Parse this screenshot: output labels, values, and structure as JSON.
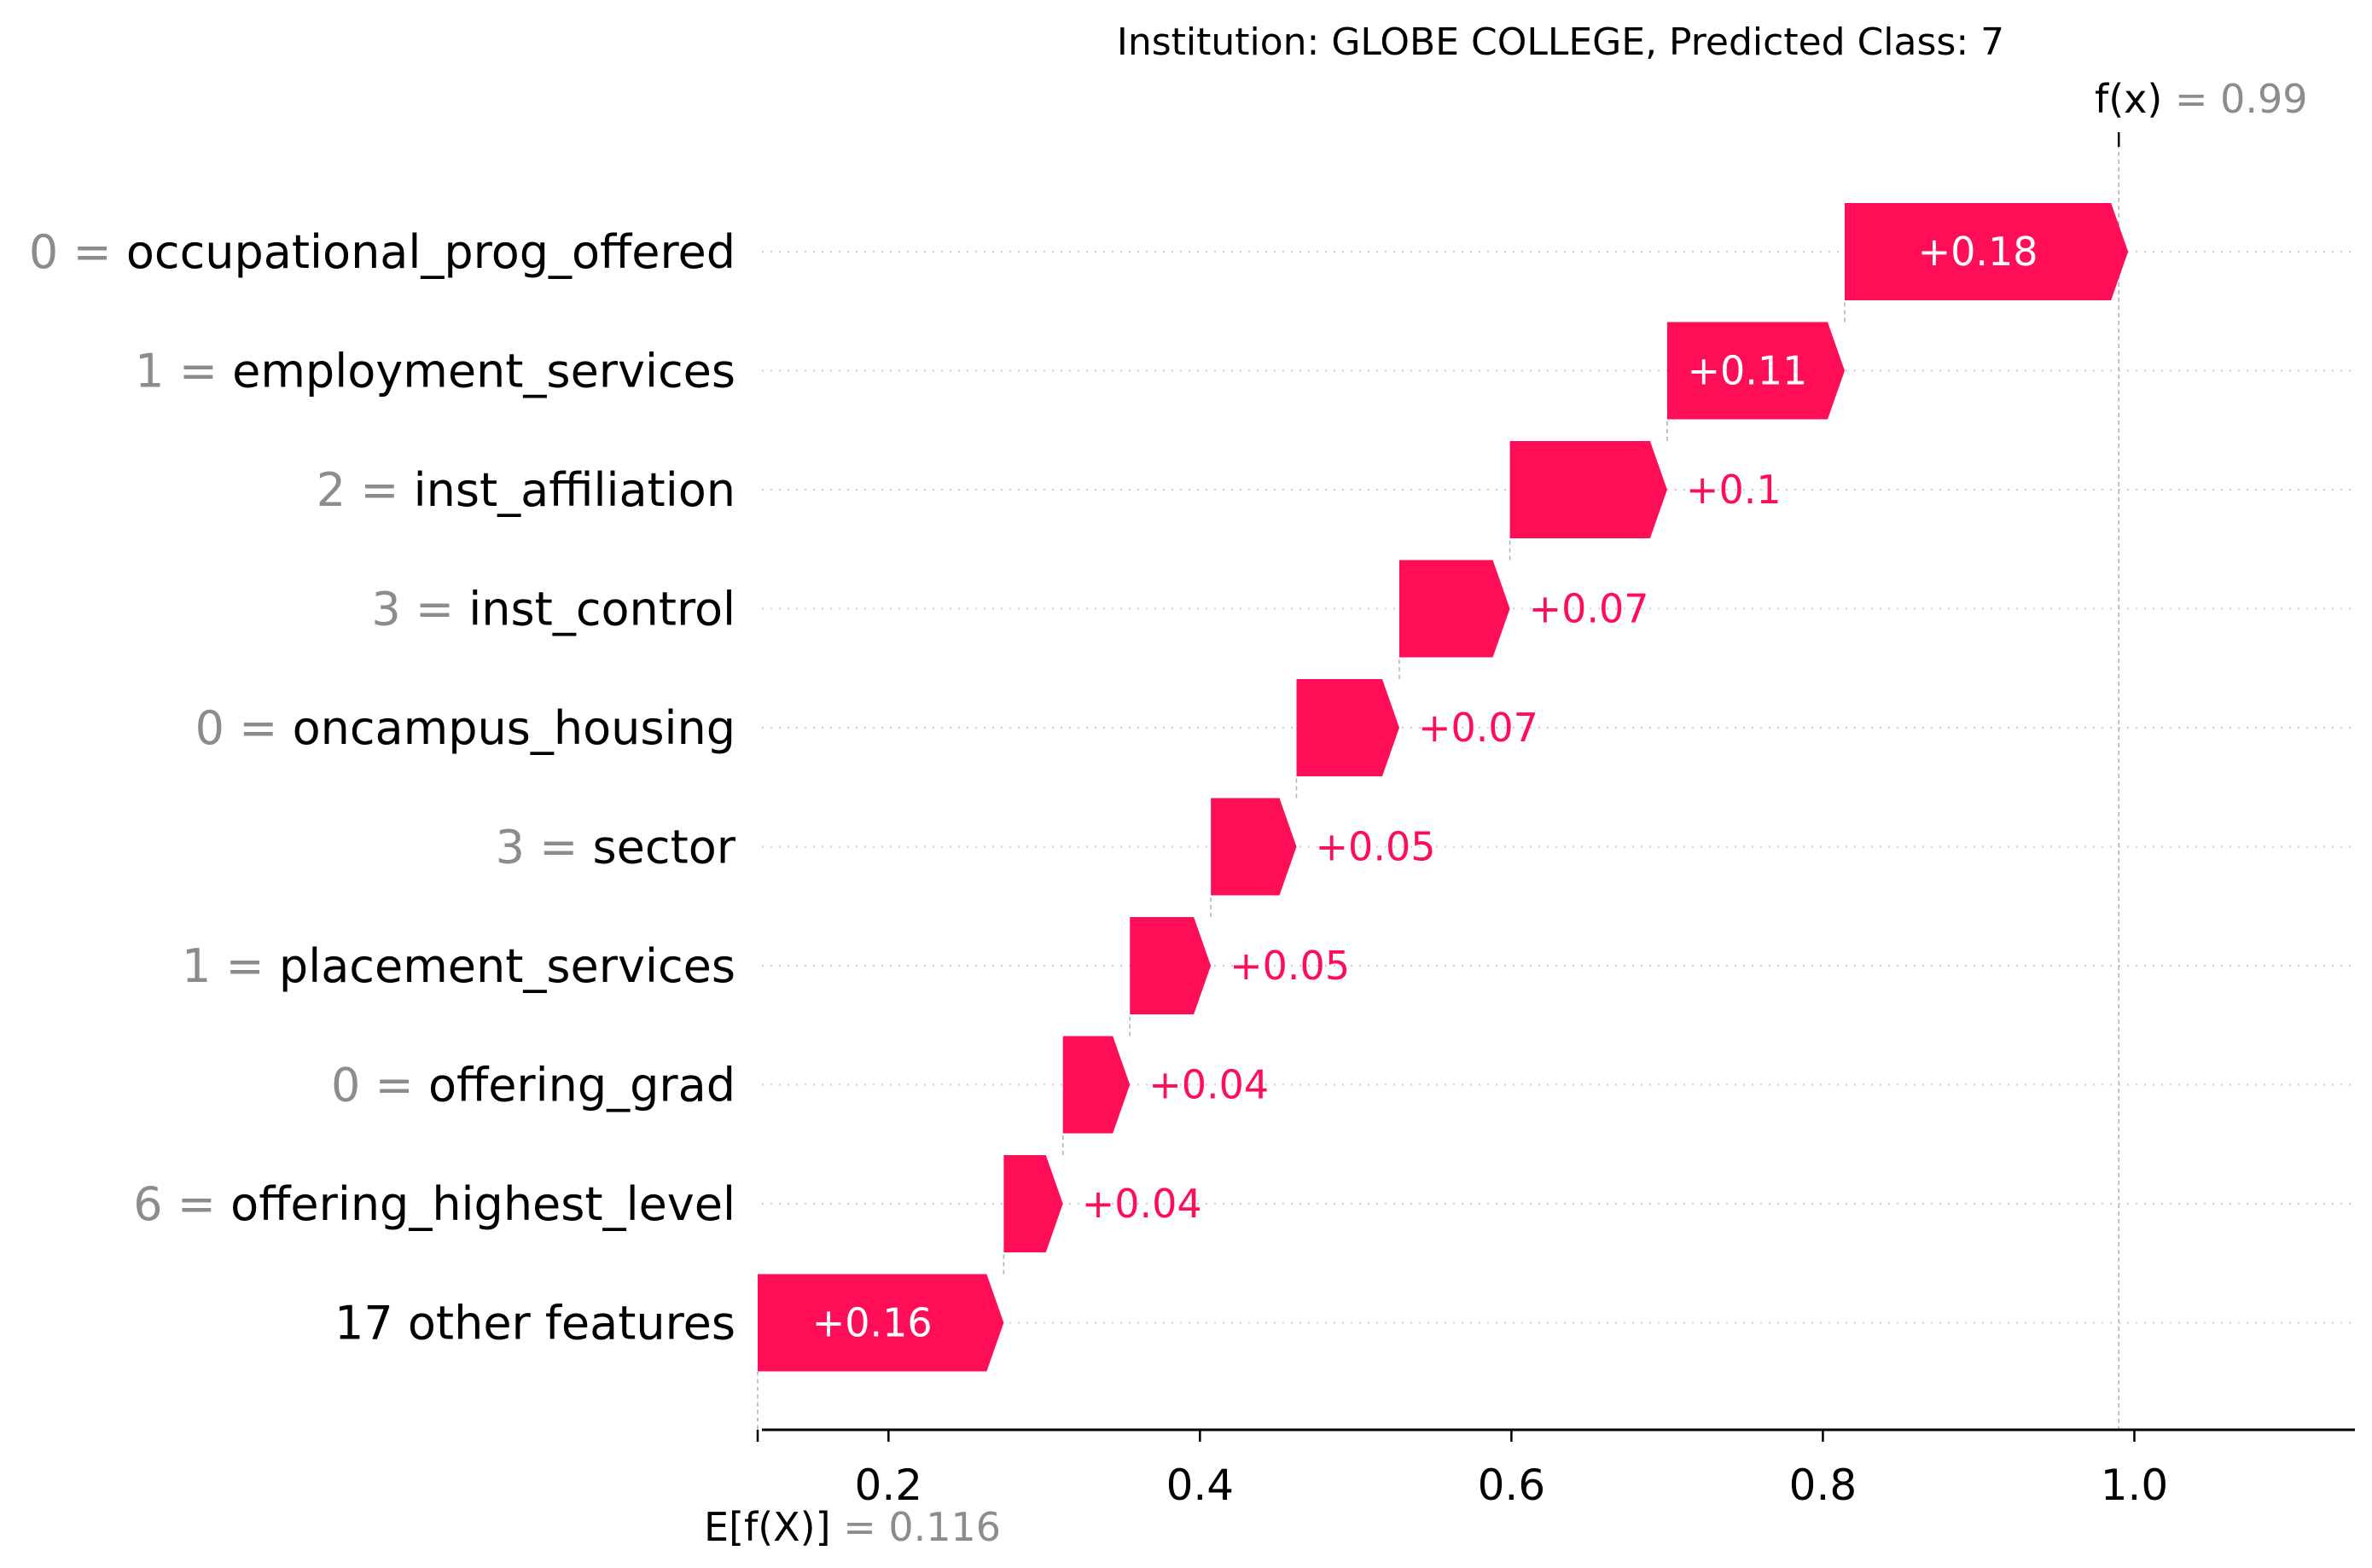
{
  "chart_data": {
    "type": "waterfall",
    "title": "Institution: GLOBE COLLEGE, Predicted Class: 7",
    "base_value": 0.116,
    "base_label_prefix": "E[f(X)]",
    "base_value_text": "= 0.116",
    "output_value": 0.99,
    "output_label_prefix": "f(x)",
    "output_value_text": "= 0.99",
    "xlim": [
      0.116,
      1.13
    ],
    "xticks": [
      0.2,
      0.4,
      0.6,
      0.8,
      1.0
    ],
    "xtick_labels": [
      "0.2",
      "0.4",
      "0.6",
      "0.8",
      "1.0"
    ],
    "positive_color": "#ff0d57",
    "features": [
      {
        "value": "0",
        "name": "occupational_prog_offered",
        "contribution": 0.182,
        "label": "+0.18"
      },
      {
        "value": "1",
        "name": "employment_services",
        "contribution": 0.114,
        "label": "+0.11"
      },
      {
        "value": "2",
        "name": "inst_affiliation",
        "contribution": 0.101,
        "label": "+0.1"
      },
      {
        "value": "3",
        "name": "inst_control",
        "contribution": 0.071,
        "label": "+0.07"
      },
      {
        "value": "0",
        "name": "oncampus_housing",
        "contribution": 0.066,
        "label": "+0.07"
      },
      {
        "value": "3",
        "name": "sector",
        "contribution": 0.055,
        "label": "+0.05"
      },
      {
        "value": "1",
        "name": "placement_services",
        "contribution": 0.052,
        "label": "+0.05"
      },
      {
        "value": "0",
        "name": "offering_grad",
        "contribution": 0.043,
        "label": "+0.04"
      },
      {
        "value": "6",
        "name": "offering_highest_level",
        "contribution": 0.038,
        "label": "+0.04"
      },
      {
        "value": "",
        "name": "17 other features",
        "contribution": 0.158,
        "label": "+0.16"
      }
    ]
  }
}
